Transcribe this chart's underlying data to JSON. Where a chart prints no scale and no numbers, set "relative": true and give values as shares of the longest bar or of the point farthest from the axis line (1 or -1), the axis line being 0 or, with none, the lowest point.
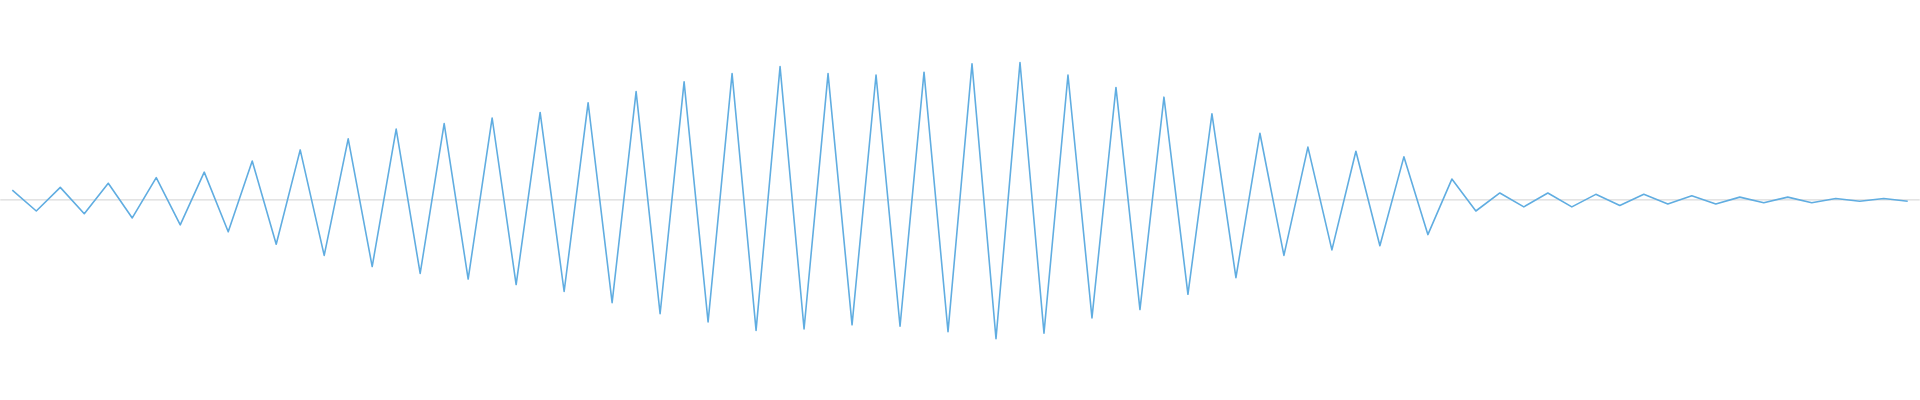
{
  "chart_data": {
    "type": "line",
    "relative": true,
    "color": "#60ade1",
    "line_style": "solid",
    "marker": "none",
    "categories": [
      null,
      null,
      null,
      null,
      null,
      null,
      null,
      null,
      null,
      null,
      null,
      null,
      null,
      null,
      null,
      null,
      null,
      null,
      null,
      null,
      null,
      null,
      null,
      null,
      null,
      null,
      null,
      null,
      null,
      null,
      null,
      null,
      null,
      null,
      null,
      null,
      null,
      null,
      null,
      null,
      null,
      null,
      null,
      null,
      null,
      null,
      null,
      null,
      null,
      null,
      null,
      null,
      null,
      null,
      null,
      null,
      null,
      null,
      null,
      null,
      null,
      null,
      null,
      null,
      null,
      null,
      null,
      null,
      null,
      null,
      null,
      null,
      null,
      null,
      null,
      null,
      null,
      null,
      null,
      null
    ],
    "values": [
      0.07,
      -0.08,
      0.09,
      -0.1,
      0.12,
      -0.13,
      0.16,
      -0.18,
      0.2,
      -0.23,
      0.28,
      -0.32,
      0.36,
      -0.4,
      0.44,
      -0.48,
      0.51,
      -0.53,
      0.55,
      -0.57,
      0.59,
      -0.61,
      0.63,
      -0.66,
      0.7,
      -0.74,
      0.78,
      -0.82,
      0.85,
      -0.88,
      0.91,
      -0.94,
      0.96,
      -0.93,
      0.91,
      -0.9,
      0.9,
      -0.91,
      0.92,
      -0.95,
      0.98,
      -1,
      0.99,
      -0.96,
      0.9,
      -0.85,
      0.81,
      -0.79,
      0.74,
      -0.68,
      0.62,
      -0.56,
      0.48,
      -0.4,
      0.38,
      -0.36,
      0.35,
      -0.33,
      0.31,
      -0.25,
      0.15,
      -0.08,
      0.05,
      -0.05,
      0.05,
      -0.05,
      0.04,
      -0.04,
      0.04,
      -0.03,
      0.03,
      -0.03,
      0.02,
      -0.02,
      0.02,
      -0.02,
      0.01,
      -0.01,
      0.01,
      -0.01
    ]
  }
}
